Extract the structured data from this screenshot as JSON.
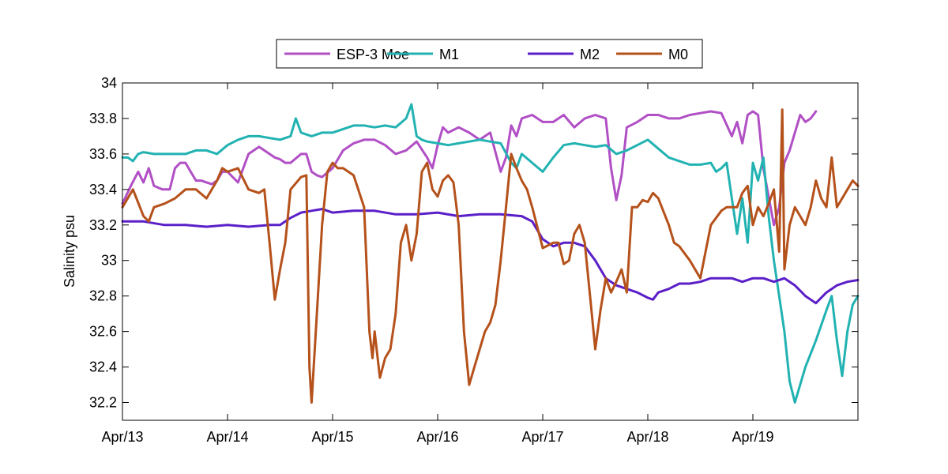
{
  "chart_data": {
    "type": "line",
    "title": "",
    "xlabel": "",
    "ylabel": "Salinity psu",
    "xlim": [
      0,
      7.0
    ],
    "ylim": [
      32.1,
      34
    ],
    "x_ticks": [
      {
        "value": 0,
        "label": "Apr/13"
      },
      {
        "value": 1,
        "label": "Apr/14"
      },
      {
        "value": 2,
        "label": "Apr/15"
      },
      {
        "value": 3,
        "label": "Apr/16"
      },
      {
        "value": 4,
        "label": "Apr/17"
      },
      {
        "value": 5,
        "label": "Apr/18"
      },
      {
        "value": 6,
        "label": "Apr/19"
      }
    ],
    "y_ticks": [
      {
        "value": 32.2,
        "label": "32.2"
      },
      {
        "value": 32.4,
        "label": "32.4"
      },
      {
        "value": 32.6,
        "label": "32.6"
      },
      {
        "value": 32.8,
        "label": "32.8"
      },
      {
        "value": 33.0,
        "label": "33"
      },
      {
        "value": 33.2,
        "label": "33.2"
      },
      {
        "value": 33.4,
        "label": "33.4"
      },
      {
        "value": 33.6,
        "label": "33.6"
      },
      {
        "value": 33.8,
        "label": "33.8"
      },
      {
        "value": 34.0,
        "label": "34"
      }
    ],
    "grid": false,
    "legend_position": "top-center",
    "series": [
      {
        "name": "ESP-3 Moe",
        "color": "#b14fc5",
        "x": [
          0,
          0.08,
          0.15,
          0.2,
          0.25,
          0.3,
          0.38,
          0.45,
          0.5,
          0.55,
          0.6,
          0.65,
          0.7,
          0.75,
          0.8,
          0.85,
          0.9,
          0.95,
          1.0,
          1.1,
          1.2,
          1.3,
          1.35,
          1.4,
          1.45,
          1.5,
          1.55,
          1.6,
          1.7,
          1.75,
          1.8,
          1.85,
          1.9,
          2.0,
          2.1,
          2.2,
          2.3,
          2.4,
          2.5,
          2.6,
          2.7,
          2.8,
          2.9,
          2.95,
          3.0,
          3.05,
          3.1,
          3.2,
          3.3,
          3.4,
          3.5,
          3.6,
          3.65,
          3.7,
          3.75,
          3.8,
          3.9,
          4.0,
          4.1,
          4.2,
          4.3,
          4.4,
          4.5,
          4.6,
          4.65,
          4.7,
          4.75,
          4.8,
          4.9,
          5.0,
          5.1,
          5.2,
          5.3,
          5.4,
          5.5,
          5.6,
          5.7,
          5.8,
          5.85,
          5.9,
          5.95,
          6.0,
          6.05,
          6.1,
          6.2,
          6.25,
          6.3,
          6.35,
          6.4,
          6.45,
          6.5,
          6.55,
          6.6
        ],
        "values": [
          33.32,
          33.42,
          33.5,
          33.44,
          33.52,
          33.42,
          33.4,
          33.4,
          33.52,
          33.55,
          33.55,
          33.5,
          33.45,
          33.45,
          33.44,
          33.43,
          33.45,
          33.5,
          33.5,
          33.44,
          33.6,
          33.64,
          33.62,
          33.6,
          33.58,
          33.57,
          33.55,
          33.55,
          33.6,
          33.6,
          33.5,
          33.48,
          33.47,
          33.52,
          33.62,
          33.66,
          33.68,
          33.68,
          33.65,
          33.6,
          33.62,
          33.67,
          33.58,
          33.52,
          33.65,
          33.75,
          33.72,
          33.75,
          33.72,
          33.68,
          33.72,
          33.5,
          33.58,
          33.76,
          33.7,
          33.8,
          33.82,
          33.78,
          33.78,
          33.82,
          33.75,
          33.8,
          33.82,
          33.8,
          33.52,
          33.34,
          33.48,
          33.75,
          33.78,
          33.82,
          33.82,
          33.8,
          33.8,
          33.82,
          33.83,
          33.84,
          33.83,
          33.7,
          33.78,
          33.66,
          33.82,
          33.84,
          33.82,
          33.52,
          33.2,
          33.3,
          33.55,
          33.62,
          33.72,
          33.82,
          33.78,
          33.8,
          33.84
        ]
      },
      {
        "name": "M1",
        "color": "#22b2b2",
        "x": [
          0,
          0.05,
          0.1,
          0.15,
          0.2,
          0.3,
          0.4,
          0.5,
          0.6,
          0.7,
          0.8,
          0.9,
          1.0,
          1.1,
          1.2,
          1.3,
          1.4,
          1.5,
          1.6,
          1.65,
          1.7,
          1.8,
          1.9,
          2.0,
          2.1,
          2.2,
          2.3,
          2.4,
          2.5,
          2.6,
          2.7,
          2.75,
          2.8,
          2.85,
          2.9,
          3.0,
          3.1,
          3.2,
          3.3,
          3.4,
          3.5,
          3.6,
          3.7,
          3.75,
          3.8,
          3.9,
          4.0,
          4.1,
          4.2,
          4.3,
          4.4,
          4.5,
          4.6,
          4.7,
          4.8,
          4.9,
          5.0,
          5.1,
          5.2,
          5.3,
          5.4,
          5.5,
          5.6,
          5.65,
          5.7,
          5.75,
          5.8,
          5.85,
          5.9,
          5.95,
          6.0,
          6.05,
          6.1,
          6.15,
          6.2,
          6.25,
          6.3,
          6.35,
          6.4,
          6.5,
          6.6,
          6.7,
          6.75,
          6.8,
          6.85,
          6.9,
          6.95,
          7.0
        ],
        "values": [
          33.58,
          33.58,
          33.56,
          33.6,
          33.61,
          33.6,
          33.6,
          33.6,
          33.6,
          33.62,
          33.62,
          33.6,
          33.65,
          33.68,
          33.7,
          33.7,
          33.69,
          33.68,
          33.7,
          33.8,
          33.72,
          33.7,
          33.72,
          33.72,
          33.74,
          33.76,
          33.76,
          33.75,
          33.76,
          33.75,
          33.8,
          33.88,
          33.7,
          33.68,
          33.67,
          33.66,
          33.65,
          33.66,
          33.67,
          33.68,
          33.67,
          33.66,
          33.55,
          33.52,
          33.6,
          33.55,
          33.5,
          33.58,
          33.65,
          33.66,
          33.65,
          33.64,
          33.65,
          33.6,
          33.62,
          33.65,
          33.68,
          33.63,
          33.58,
          33.56,
          33.54,
          33.54,
          33.55,
          33.5,
          33.52,
          33.55,
          33.35,
          33.15,
          33.35,
          33.1,
          33.55,
          33.45,
          33.58,
          33.25,
          33.0,
          32.8,
          32.6,
          32.32,
          32.2,
          32.4,
          32.55,
          32.72,
          32.8,
          32.55,
          32.35,
          32.6,
          32.75,
          32.8
        ]
      },
      {
        "name": "M2",
        "color": "#5b1fc8",
        "x": [
          0,
          0.2,
          0.4,
          0.6,
          0.8,
          1.0,
          1.2,
          1.4,
          1.5,
          1.6,
          1.7,
          1.8,
          1.9,
          2.0,
          2.2,
          2.4,
          2.6,
          2.8,
          3.0,
          3.2,
          3.4,
          3.6,
          3.8,
          3.9,
          4.0,
          4.1,
          4.2,
          4.3,
          4.4,
          4.5,
          4.6,
          4.7,
          4.8,
          4.9,
          5.0,
          5.05,
          5.1,
          5.2,
          5.3,
          5.4,
          5.5,
          5.6,
          5.7,
          5.8,
          5.9,
          6.0,
          6.1,
          6.2,
          6.3,
          6.4,
          6.5,
          6.6,
          6.7,
          6.8,
          6.9,
          7.0
        ],
        "values": [
          33.22,
          33.22,
          33.2,
          33.2,
          33.19,
          33.2,
          33.19,
          33.2,
          33.2,
          33.24,
          33.27,
          33.28,
          33.29,
          33.27,
          33.28,
          33.28,
          33.26,
          33.26,
          33.27,
          33.25,
          33.26,
          33.26,
          33.25,
          33.22,
          33.12,
          33.08,
          33.1,
          33.1,
          33.08,
          33.0,
          32.9,
          32.86,
          32.84,
          32.82,
          32.79,
          32.78,
          32.82,
          32.84,
          32.87,
          32.87,
          32.88,
          32.9,
          32.9,
          32.9,
          32.88,
          32.9,
          32.9,
          32.88,
          32.9,
          32.86,
          32.8,
          32.76,
          32.82,
          32.86,
          32.88,
          32.89
        ]
      },
      {
        "name": "M0",
        "color": "#b5511b",
        "x": [
          0,
          0.1,
          0.2,
          0.25,
          0.3,
          0.4,
          0.5,
          0.6,
          0.7,
          0.8,
          0.9,
          0.95,
          1.0,
          1.1,
          1.2,
          1.3,
          1.35,
          1.4,
          1.45,
          1.5,
          1.55,
          1.6,
          1.7,
          1.75,
          1.78,
          1.8,
          1.85,
          1.9,
          1.95,
          2.0,
          2.05,
          2.1,
          2.2,
          2.3,
          2.35,
          2.38,
          2.4,
          2.45,
          2.5,
          2.55,
          2.6,
          2.65,
          2.7,
          2.75,
          2.8,
          2.85,
          2.9,
          2.95,
          3.0,
          3.05,
          3.1,
          3.15,
          3.2,
          3.25,
          3.3,
          3.35,
          3.4,
          3.45,
          3.5,
          3.55,
          3.6,
          3.65,
          3.7,
          3.75,
          3.8,
          3.85,
          3.9,
          4.0,
          4.1,
          4.15,
          4.2,
          4.25,
          4.3,
          4.35,
          4.4,
          4.45,
          4.5,
          4.55,
          4.6,
          4.65,
          4.7,
          4.75,
          4.8,
          4.85,
          4.9,
          4.95,
          5.0,
          5.05,
          5.1,
          5.2,
          5.25,
          5.3,
          5.35,
          5.4,
          5.5,
          5.6,
          5.7,
          5.75,
          5.8,
          5.85,
          5.9,
          5.95,
          6.0,
          6.05,
          6.1,
          6.15,
          6.2,
          6.25,
          6.28,
          6.3,
          6.35,
          6.4,
          6.45,
          6.5,
          6.55,
          6.6,
          6.65,
          6.7,
          6.75,
          6.8,
          6.85,
          6.9,
          6.95,
          7.0
        ],
        "values": [
          33.3,
          33.4,
          33.25,
          33.22,
          33.3,
          33.32,
          33.35,
          33.4,
          33.4,
          33.35,
          33.45,
          33.52,
          33.5,
          33.52,
          33.4,
          33.38,
          33.4,
          33.1,
          32.78,
          32.95,
          33.1,
          33.4,
          33.47,
          33.48,
          32.4,
          32.2,
          32.7,
          33.2,
          33.5,
          33.55,
          33.52,
          33.52,
          33.48,
          33.3,
          32.6,
          32.45,
          32.6,
          32.34,
          32.45,
          32.5,
          32.7,
          33.1,
          33.2,
          33.0,
          33.15,
          33.5,
          33.55,
          33.4,
          33.36,
          33.45,
          33.48,
          33.44,
          33.2,
          32.6,
          32.3,
          32.4,
          32.5,
          32.6,
          32.65,
          32.75,
          33.0,
          33.3,
          33.6,
          33.52,
          33.45,
          33.4,
          33.3,
          33.07,
          33.1,
          33.1,
          32.98,
          33.0,
          33.15,
          33.2,
          33.1,
          32.8,
          32.5,
          32.72,
          32.9,
          32.82,
          32.88,
          32.95,
          32.82,
          33.3,
          33.3,
          33.34,
          33.33,
          33.38,
          33.35,
          33.2,
          33.1,
          33.08,
          33.04,
          33.0,
          32.9,
          33.2,
          33.28,
          33.3,
          33.3,
          33.3,
          33.38,
          33.42,
          33.2,
          33.3,
          33.25,
          33.32,
          33.4,
          33.05,
          33.85,
          32.95,
          33.2,
          33.3,
          33.25,
          33.2,
          33.3,
          33.45,
          33.35,
          33.3,
          33.58,
          33.3,
          33.35,
          33.4,
          33.45,
          33.42
        ]
      }
    ]
  }
}
